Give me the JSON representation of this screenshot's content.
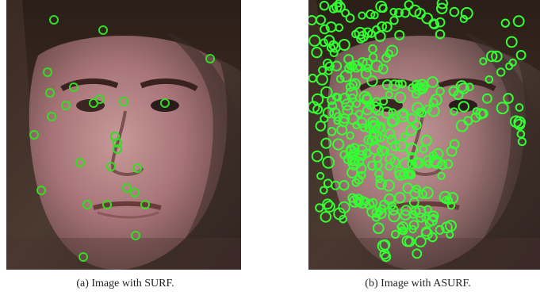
{
  "figure": {
    "panels": [
      {
        "caption": "(a) Image with SURF.",
        "keypoint_color": "#33dd22",
        "keypoint_count": 27,
        "content": "face photograph with sparse green circular keypoint markers"
      },
      {
        "caption": "(b) Image with ASURF.",
        "keypoint_color": "#33ff33",
        "content": "face photograph densely covered with green circular keypoint markers"
      }
    ]
  }
}
